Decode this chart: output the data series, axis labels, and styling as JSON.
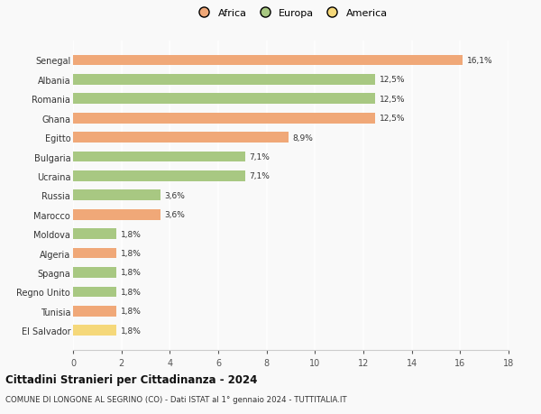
{
  "categories": [
    "El Salvador",
    "Tunisia",
    "Regno Unito",
    "Spagna",
    "Algeria",
    "Moldova",
    "Marocco",
    "Russia",
    "Ucraina",
    "Bulgaria",
    "Egitto",
    "Ghana",
    "Romania",
    "Albania",
    "Senegal"
  ],
  "values": [
    1.8,
    1.8,
    1.8,
    1.8,
    1.8,
    1.8,
    3.6,
    3.6,
    7.1,
    7.1,
    8.9,
    12.5,
    12.5,
    12.5,
    16.1
  ],
  "labels": [
    "1,8%",
    "1,8%",
    "1,8%",
    "1,8%",
    "1,8%",
    "1,8%",
    "3,6%",
    "3,6%",
    "7,1%",
    "7,1%",
    "8,9%",
    "12,5%",
    "12,5%",
    "12,5%",
    "16,1%"
  ],
  "colors": [
    "#f5d87a",
    "#f0a878",
    "#a8c882",
    "#a8c882",
    "#f0a878",
    "#a8c882",
    "#f0a878",
    "#a8c882",
    "#a8c882",
    "#a8c882",
    "#f0a878",
    "#f0a878",
    "#a8c882",
    "#a8c882",
    "#f0a878"
  ],
  "continent": [
    "America",
    "Africa",
    "Europa",
    "Europa",
    "Africa",
    "Europa",
    "Africa",
    "Europa",
    "Europa",
    "Europa",
    "Africa",
    "Africa",
    "Europa",
    "Europa",
    "Africa"
  ],
  "legend_labels": [
    "Africa",
    "Europa",
    "America"
  ],
  "legend_colors": [
    "#f0a878",
    "#a8c882",
    "#f5d87a"
  ],
  "title1": "Cittadini Stranieri per Cittadinanza - 2024",
  "title2": "COMUNE DI LONGONE AL SEGRINO (CO) - Dati ISTAT al 1° gennaio 2024 - TUTTITALIA.IT",
  "xlim": [
    0,
    18
  ],
  "xticks": [
    0,
    2,
    4,
    6,
    8,
    10,
    12,
    14,
    16,
    18
  ],
  "bg_color": "#f9f9f9",
  "grid_color": "#ffffff",
  "bar_height": 0.55
}
